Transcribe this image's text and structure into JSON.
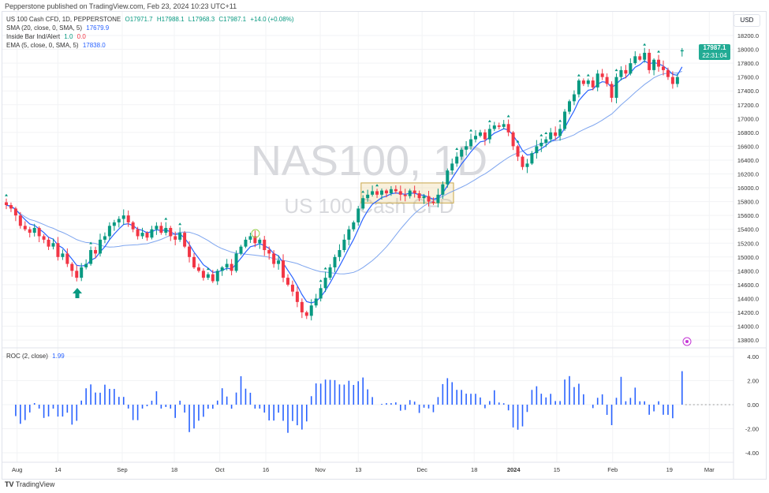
{
  "publisher_line": "Pepperstone published on TradingView.com, Feb 23, 2024 10:23 UTC+11",
  "legend": {
    "symbol": "US 100 Cash CFD, 1D, PEPPERSTONE",
    "open": "O17971.7",
    "high": "H17988.1",
    "low": "L17968.3",
    "close": "C17987.1",
    "change": "+14.0 (+0.08%)",
    "sma_label": "SMA (20, close, 0, SMA, 5)",
    "sma_value": "17679.9",
    "inside_bar_label": "Inside Bar Ind/Alert",
    "inside_bar_v1": "1.0",
    "inside_bar_v2": "0.0",
    "ema_label": "EMA (5, close, 0, SMA, 5)",
    "ema_value": "17838.0",
    "roc_label": "ROC (2, close)",
    "roc_value": "1.99"
  },
  "currency": "USD",
  "price_tag": {
    "price": "17987.1",
    "countdown": "22:31:04"
  },
  "watermark": {
    "symbol": "NAS100, 1D",
    "description": "US 100 Cash CFD"
  },
  "footer": "TradingView",
  "colors": {
    "up": "#089981",
    "down": "#f23645",
    "sma": "#7fa6ef",
    "ema": "#2962ff",
    "roc": "#2962ff",
    "box": "#c8a64a"
  },
  "chart_data": {
    "type": "candlestick",
    "title": "NAS100, 1D",
    "price_ticks": [
      "18200.0",
      "18000.0",
      "17800.0",
      "17600.0",
      "17400.0",
      "17200.0",
      "17000.0",
      "16800.0",
      "16600.0",
      "16400.0",
      "16200.0",
      "16000.0",
      "15800.0",
      "15600.0",
      "15400.0",
      "15200.0",
      "15000.0",
      "14800.0",
      "14600.0",
      "14400.0",
      "14200.0",
      "14000.0",
      "13800.0"
    ],
    "ylim": [
      13800,
      18200
    ],
    "roc_ticks": [
      "4.00",
      "2.00",
      "0.00",
      "-2.00",
      "-4.00"
    ],
    "roc_ylim": [
      -4,
      4
    ],
    "x_labels": [
      {
        "label": "Aug",
        "day": 2.3
      },
      {
        "label": "14",
        "day": 11
      },
      {
        "label": "Sep",
        "day": 24.7
      },
      {
        "label": "18",
        "day": 35.8
      },
      {
        "label": "Oct",
        "day": 45.5
      },
      {
        "label": "16",
        "day": 55.3
      },
      {
        "label": "Nov",
        "day": 66.9
      },
      {
        "label": "13",
        "day": 75
      },
      {
        "label": "Dec",
        "day": 88.6
      },
      {
        "label": "18",
        "day": 99.7
      },
      {
        "label": "2024",
        "day": 108.1
      },
      {
        "label": "15",
        "day": 117.3
      },
      {
        "label": "Feb",
        "day": 129.2
      },
      {
        "label": "19",
        "day": 141.3
      },
      {
        "label": "Mar",
        "day": 149.8
      }
    ],
    "close": [
      15750,
      15700,
      15600,
      15450,
      15400,
      15350,
      15420,
      15300,
      15250,
      15150,
      15200,
      15000,
      15050,
      14900,
      14800,
      14700,
      14850,
      14900,
      15100,
      15050,
      15250,
      15300,
      15450,
      15500,
      15550,
      15600,
      15500,
      15400,
      15300,
      15350,
      15280,
      15400,
      15450,
      15350,
      15420,
      15300,
      15250,
      15350,
      15150,
      15000,
      14850,
      14800,
      14700,
      14750,
      14650,
      14800,
      14850,
      14900,
      14800,
      15050,
      15150,
      15250,
      15300,
      15200,
      15250,
      15100,
      15050,
      14900,
      14950,
      14700,
      14600,
      14500,
      14350,
      14200,
      14150,
      14300,
      14400,
      14550,
      14700,
      14850,
      15000,
      15100,
      15250,
      15400,
      15500,
      15700,
      15850,
      15900,
      15950,
      15900,
      15960,
      15920,
      15980,
      15950,
      15900,
      15880,
      15960,
      15920,
      15850,
      15880,
      15800,
      15780,
      15900,
      16050,
      16250,
      16350,
      16450,
      16550,
      16600,
      16700,
      16750,
      16800,
      16700,
      16850,
      16900,
      16880,
      16920,
      16800,
      16600,
      16450,
      16300,
      16350,
      16500,
      16600,
      16650,
      16700,
      16800,
      16750,
      16850,
      17100,
      17250,
      17350,
      17550,
      17500,
      17550,
      17450,
      17650,
      17600,
      17500,
      17300,
      17600,
      17700,
      17650,
      17800,
      17900,
      17850,
      17950,
      17700,
      17850,
      17750,
      17700,
      17600,
      17500,
      17600,
      17987.1
    ],
    "last_open": 17971.7,
    "indicators": [
      "SMA 20",
      "EMA 5",
      "ROC 2"
    ],
    "inside_bar_box": {
      "from_day": 75.6,
      "to_day": 95.3,
      "low": 15780,
      "high": 16070
    },
    "signal_arrow_day": 15
  }
}
